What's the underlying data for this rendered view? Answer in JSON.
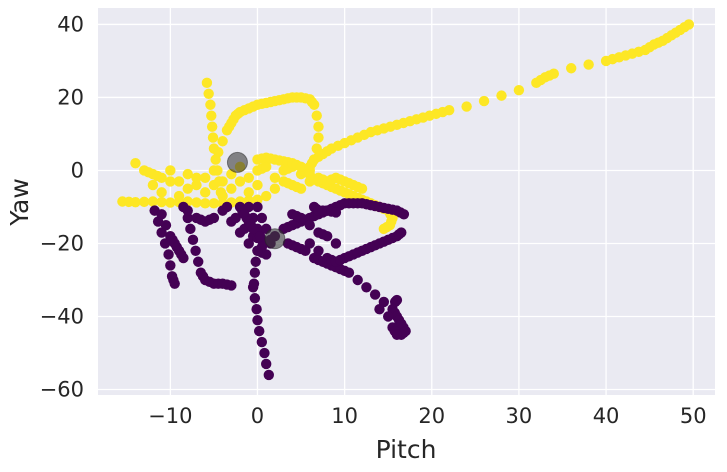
{
  "chart_data": {
    "type": "scatter",
    "title": "",
    "xlabel": "Pitch",
    "ylabel": "Yaw",
    "xlim": [
      -18.3,
      52.5
    ],
    "ylim": [
      -61.5,
      44.5
    ],
    "xticks": [
      -10,
      0,
      10,
      20,
      30,
      40,
      50
    ],
    "yticks": [
      -60,
      -40,
      -20,
      0,
      20,
      40
    ],
    "xtick_labels": [
      "−10",
      "0",
      "10",
      "20",
      "30",
      "40",
      "50"
    ],
    "ytick_labels": [
      "−60",
      "−40",
      "−20",
      "0",
      "20",
      "40"
    ],
    "grid": true,
    "background": "#eaeaf2",
    "colors": {
      "class_1": "#fde725",
      "class_0": "#440154",
      "center": "#3a3a3a"
    },
    "series": [
      {
        "color": "#fde725",
        "segments": [
          [
            [
              -15.5,
              -8.5
            ],
            [
              -14,
              -8.7
            ],
            [
              -12,
              -8.5
            ],
            [
              -10,
              -8.8
            ],
            [
              -8,
              -8.5
            ],
            [
              -6,
              -9
            ],
            [
              -4,
              -9
            ],
            [
              -2,
              -8.5
            ],
            [
              0,
              -8
            ]
          ],
          [
            [
              -14,
              2
            ],
            [
              -13,
              0
            ],
            [
              -12,
              -1
            ],
            [
              -11,
              -2
            ],
            [
              -10,
              0
            ],
            [
              -9,
              -3
            ],
            [
              -8,
              -1
            ],
            [
              -7,
              -4
            ],
            [
              -6,
              -2
            ],
            [
              -5,
              0
            ],
            [
              -4,
              -3
            ],
            [
              -3,
              -1
            ],
            [
              -2,
              1
            ],
            [
              -1,
              -2
            ],
            [
              0,
              0
            ],
            [
              1,
              1
            ],
            [
              2,
              -2
            ],
            [
              3,
              0
            ],
            [
              4,
              1
            ],
            [
              5,
              -1
            ],
            [
              6,
              0
            ]
          ],
          [
            [
              -12,
              -4
            ],
            [
              -11,
              -6
            ],
            [
              -10,
              -3
            ],
            [
              -9,
              -7
            ],
            [
              -8,
              -5
            ],
            [
              -7,
              -2
            ],
            [
              -6,
              -6
            ],
            [
              -5,
              -4
            ],
            [
              -4,
              -7
            ],
            [
              -3,
              -5
            ],
            [
              -2,
              -3
            ],
            [
              -1,
              -6
            ],
            [
              0,
              -4
            ],
            [
              1,
              -7
            ],
            [
              2,
              -5
            ]
          ],
          [
            [
              -5.8,
              24
            ],
            [
              -5.6,
              21
            ],
            [
              -5.4,
              18
            ],
            [
              -5.3,
              15
            ],
            [
              -5.2,
              12
            ],
            [
              -5.1,
              9
            ],
            [
              -5,
              6
            ],
            [
              -4.8,
              3
            ],
            [
              -4.6,
              0
            ],
            [
              -4.4,
              -3
            ],
            [
              -4.2,
              -6
            ]
          ],
          [
            [
              -4.5,
              5
            ],
            [
              -4,
              8
            ],
            [
              -3.5,
              11
            ],
            [
              -3,
              13
            ],
            [
              -2.5,
              15
            ],
            [
              -2,
              16
            ],
            [
              -1,
              17
            ],
            [
              0,
              18
            ],
            [
              1,
              18.5
            ],
            [
              2,
              19
            ],
            [
              3,
              19.5
            ],
            [
              4,
              20
            ],
            [
              5,
              20
            ],
            [
              6,
              19.5
            ],
            [
              6.5,
              18
            ],
            [
              6.8,
              15
            ],
            [
              7,
              12
            ],
            [
              7,
              9
            ],
            [
              6.8,
              6
            ],
            [
              6.5,
              3
            ],
            [
              6,
              1
            ]
          ],
          [
            [
              0,
              3
            ],
            [
              1,
              3.5
            ],
            [
              2,
              3
            ],
            [
              3,
              2.5
            ],
            [
              4,
              2
            ],
            [
              5,
              1
            ],
            [
              6,
              -1
            ],
            [
              7,
              -3
            ],
            [
              8,
              -4
            ],
            [
              9,
              -5
            ],
            [
              10,
              -6
            ],
            [
              11,
              -7
            ],
            [
              12,
              -8
            ],
            [
              13,
              -9
            ],
            [
              14,
              -10
            ],
            [
              15,
              -11
            ],
            [
              15.5,
              -13
            ],
            [
              15.2,
              -15
            ],
            [
              14.5,
              -16
            ]
          ],
          [
            [
              3,
              -3
            ],
            [
              4,
              -4
            ],
            [
              5,
              -5
            ],
            [
              6,
              -3
            ],
            [
              7,
              -2
            ],
            [
              8,
              -3
            ],
            [
              9,
              -2
            ],
            [
              10,
              -3
            ],
            [
              11,
              -4
            ],
            [
              12,
              -5
            ]
          ],
          [
            [
              6.5,
              3
            ],
            [
              7.5,
              4.5
            ],
            [
              8.5,
              6
            ],
            [
              10,
              7.5
            ],
            [
              11.5,
              9
            ],
            [
              13,
              10.5
            ],
            [
              14.5,
              11.5
            ],
            [
              16,
              12.5
            ],
            [
              17.5,
              13.5
            ],
            [
              19,
              14.5
            ],
            [
              20.5,
              15.5
            ],
            [
              22,
              16.5
            ],
            [
              24,
              17.5
            ],
            [
              26,
              19
            ],
            [
              28,
              20.5
            ],
            [
              30,
              22
            ],
            [
              32,
              24
            ],
            [
              33,
              25.5
            ],
            [
              34,
              26.5
            ],
            [
              36,
              28
            ],
            [
              38,
              29
            ],
            [
              40,
              30
            ],
            [
              41.5,
              31
            ],
            [
              43,
              32
            ],
            [
              44.5,
              33
            ],
            [
              45.5,
              34.5
            ],
            [
              46.5,
              35.5
            ],
            [
              47.5,
              37
            ],
            [
              48.5,
              38.5
            ],
            [
              49.5,
              40
            ]
          ]
        ]
      },
      {
        "color": "#440154",
        "segments": [
          [
            [
              -11.8,
              -11
            ],
            [
              -11.4,
              -14
            ],
            [
              -11,
              -17
            ],
            [
              -10.6,
              -20
            ],
            [
              -10.2,
              -23
            ],
            [
              -10,
              -26
            ],
            [
              -9.8,
              -29
            ],
            [
              -9.5,
              -31
            ]
          ],
          [
            [
              -11,
              -12
            ],
            [
              -10.5,
              -15
            ],
            [
              -10,
              -18
            ],
            [
              -9.5,
              -20
            ],
            [
              -9,
              -22
            ],
            [
              -8.5,
              -24
            ]
          ],
          [
            [
              -8.5,
              -10
            ],
            [
              -8,
              -13
            ],
            [
              -7.7,
              -16
            ],
            [
              -7.4,
              -19
            ],
            [
              -7.1,
              -22
            ],
            [
              -6.8,
              -25
            ],
            [
              -6.5,
              -28
            ],
            [
              -6,
              -30
            ],
            [
              -5,
              -31
            ],
            [
              -4,
              -31
            ],
            [
              -3,
              -31.5
            ]
          ],
          [
            [
              -4,
              -11
            ],
            [
              -3,
              -14
            ],
            [
              -2,
              -17
            ],
            [
              -1,
              -20
            ],
            [
              0,
              -22
            ],
            [
              1,
              -23
            ]
          ],
          [
            [
              -3.5,
              -10
            ],
            [
              -2.5,
              -13
            ],
            [
              -1.5,
              -16
            ],
            [
              -0.5,
              -18
            ],
            [
              0.5,
              -19
            ],
            [
              1.5,
              -20
            ]
          ],
          [
            [
              -1,
              -10
            ],
            [
              -0.5,
              -13
            ],
            [
              0,
              -16
            ],
            [
              0.3,
              -18
            ],
            [
              0.5,
              -21
            ]
          ],
          [
            [
              0,
              -10
            ],
            [
              0.5,
              -13
            ],
            [
              1,
              -16
            ],
            [
              1.5,
              -19
            ]
          ],
          [
            [
              -2,
              -10
            ],
            [
              -1.5,
              -12
            ],
            [
              -1,
              -14
            ],
            [
              -0.5,
              -16
            ]
          ],
          [
            [
              -8,
              -11
            ],
            [
              -7,
              -13
            ],
            [
              -6,
              -14
            ],
            [
              -5,
              -13
            ]
          ],
          [
            [
              -0.5,
              -32
            ],
            [
              -0.3,
              -35
            ],
            [
              -0.1,
              -38
            ],
            [
              0,
              -41
            ],
            [
              0.2,
              -44
            ],
            [
              0.5,
              -47
            ],
            [
              0.8,
              -50
            ],
            [
              1,
              -53
            ],
            [
              1.3,
              -56
            ]
          ],
          [
            [
              0,
              -22
            ],
            [
              -0.2,
              -25
            ],
            [
              -0.3,
              -28
            ],
            [
              -0.4,
              -31
            ]
          ],
          [
            [
              2,
              -18
            ],
            [
              3,
              -16
            ],
            [
              4,
              -15
            ],
            [
              5,
              -14
            ],
            [
              6,
              -13
            ],
            [
              7,
              -12
            ],
            [
              8,
              -11
            ],
            [
              9,
              -10
            ],
            [
              10,
              -9
            ],
            [
              11,
              -9
            ],
            [
              12,
              -9
            ],
            [
              13,
              -9.5
            ],
            [
              14,
              -10
            ],
            [
              15,
              -10.5
            ],
            [
              16,
              -11
            ],
            [
              16.8,
              -12
            ]
          ],
          [
            [
              4,
              -12
            ],
            [
              5,
              -13
            ],
            [
              6,
              -15
            ],
            [
              7,
              -17
            ],
            [
              8,
              -18
            ],
            [
              9,
              -20
            ]
          ],
          [
            [
              3.5,
              -20
            ],
            [
              4.5,
              -21
            ],
            [
              5.5,
              -22
            ],
            [
              6.5,
              -24
            ],
            [
              7.5,
              -25
            ],
            [
              8.5,
              -26
            ],
            [
              9.5,
              -27
            ],
            [
              10.5,
              -28
            ],
            [
              11.5,
              -30
            ],
            [
              12.5,
              -32
            ],
            [
              13.5,
              -34
            ],
            [
              14.5,
              -36
            ],
            [
              15.5,
              -38
            ],
            [
              16,
              -40
            ],
            [
              16.5,
              -42
            ],
            [
              17,
              -44
            ],
            [
              16.5,
              -45
            ]
          ],
          [
            [
              6,
              -20
            ],
            [
              7,
              -22
            ],
            [
              8,
              -24
            ],
            [
              9,
              -25
            ],
            [
              10,
              -24
            ],
            [
              11,
              -23
            ],
            [
              12,
              -22
            ],
            [
              13,
              -21
            ],
            [
              14,
              -20
            ],
            [
              15,
              -19
            ],
            [
              16,
              -18
            ],
            [
              16.5,
              -17
            ]
          ],
          [
            [
              6.5,
              -10
            ],
            [
              7,
              -11
            ],
            [
              8,
              -11
            ],
            [
              9,
              -11.5
            ]
          ],
          [
            [
              14,
              -38
            ],
            [
              15,
              -40
            ],
            [
              15.5,
              -43
            ],
            [
              16,
              -45
            ]
          ],
          [
            [
              15.8,
              -36
            ],
            [
              16,
              -35.5
            ]
          ]
        ]
      }
    ],
    "centers": [
      {
        "x": -2.3,
        "y": 2.2
      },
      {
        "x": 2.0,
        "y": -18.7
      }
    ]
  }
}
